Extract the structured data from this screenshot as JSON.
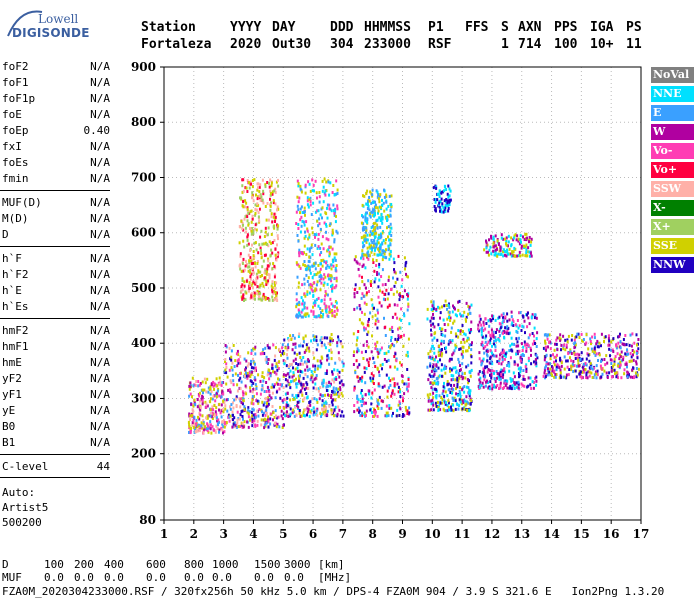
{
  "logo": {
    "line1": "Lowell",
    "line2": "DIGISONDE"
  },
  "header": {
    "row1": [
      "Station",
      "YYYY",
      "DAY",
      "DDD",
      "HHMMSS",
      "P1",
      "FFS",
      "S",
      "AXN",
      "PPS",
      "IGA",
      "PS"
    ],
    "row2": [
      "Fortaleza",
      "2020",
      "Out30",
      "304",
      "233000",
      "RSF",
      "",
      "1",
      "714",
      "100",
      "10+",
      "11"
    ]
  },
  "params": [
    {
      "name": "foF2",
      "value": "N/A"
    },
    {
      "name": "foF1",
      "value": "N/A"
    },
    {
      "name": "foF1p",
      "value": "N/A"
    },
    {
      "name": "foE",
      "value": "N/A"
    },
    {
      "name": "foEp",
      "value": "0.40"
    },
    {
      "name": "fxI",
      "value": "N/A"
    },
    {
      "name": "foEs",
      "value": "N/A"
    },
    {
      "name": "fmin",
      "value": "N/A"
    },
    {
      "name": "MUF(D)",
      "value": "N/A"
    },
    {
      "name": "M(D)",
      "value": "N/A"
    },
    {
      "name": "D",
      "value": "N/A"
    },
    {
      "name": "h`F",
      "value": "N/A"
    },
    {
      "name": "h`F2",
      "value": "N/A"
    },
    {
      "name": "h`E",
      "value": "N/A"
    },
    {
      "name": "h`Es",
      "value": "N/A"
    },
    {
      "name": "hmF2",
      "value": "N/A"
    },
    {
      "name": "hmF1",
      "value": "N/A"
    },
    {
      "name": "hmE",
      "value": "N/A"
    },
    {
      "name": "yF2",
      "value": "N/A"
    },
    {
      "name": "yF1",
      "value": "N/A"
    },
    {
      "name": "yE",
      "value": "N/A"
    },
    {
      "name": "B0",
      "value": "N/A"
    },
    {
      "name": "B1",
      "value": "N/A"
    },
    {
      "name": "C-level",
      "value": "44"
    }
  ],
  "auto": {
    "line1": "Auto:",
    "line2": "Artist5",
    "line3": "500200"
  },
  "legend": [
    {
      "label": "NoVal",
      "color": "#808080"
    },
    {
      "label": "NNE",
      "color": "#00e0ff"
    },
    {
      "label": "E",
      "color": "#3aa0ff"
    },
    {
      "label": "W",
      "color": "#b000a0"
    },
    {
      "label": "Vo-",
      "color": "#ff3cb4"
    },
    {
      "label": "Vo+",
      "color": "#ff0040"
    },
    {
      "label": "SSW",
      "color": "#ffb0a8"
    },
    {
      "label": "X-",
      "color": "#008000"
    },
    {
      "label": "X+",
      "color": "#a0d060"
    },
    {
      "label": "SSE",
      "color": "#d0d000"
    },
    {
      "label": "NNW",
      "color": "#2000c0"
    }
  ],
  "chart_data": {
    "type": "scatter",
    "xlim": [
      1,
      17
    ],
    "ylim": [
      80,
      900
    ],
    "xticks": [
      "1",
      "2",
      "3",
      "4",
      "5",
      "6",
      "7",
      "8",
      "9",
      "10",
      "11",
      "12",
      "13",
      "14",
      "15",
      "16",
      "17"
    ],
    "yticks": [
      "80",
      "200",
      "300",
      "400",
      "500",
      "600",
      "700",
      "800",
      "900"
    ],
    "grid": "dotted",
    "legend_position": "right",
    "clusters": [
      {
        "x": [
          1.8,
          3.0
        ],
        "y": [
          240,
          340
        ],
        "colors": [
          "#ffb0a8",
          "#ff3cb4",
          "#3aa0ff",
          "#d0d000",
          "#b000a0"
        ]
      },
      {
        "x": [
          3.0,
          5.0
        ],
        "y": [
          250,
          400
        ],
        "colors": [
          "#ffb0a8",
          "#b000a0",
          "#ff3cb4",
          "#d0d000",
          "#3aa0ff",
          "#2000c0"
        ]
      },
      {
        "x": [
          3.5,
          4.8
        ],
        "y": [
          480,
          700
        ],
        "colors": [
          "#d0d000",
          "#ffb0a8",
          "#ff0040",
          "#a0d060"
        ]
      },
      {
        "x": [
          5.0,
          7.0
        ],
        "y": [
          270,
          420
        ],
        "colors": [
          "#3aa0ff",
          "#00e0ff",
          "#d0d000",
          "#b000a0",
          "#ffb0a8",
          "#2000c0"
        ]
      },
      {
        "x": [
          5.4,
          6.8
        ],
        "y": [
          450,
          700
        ],
        "colors": [
          "#d0d000",
          "#00e0ff",
          "#3aa0ff",
          "#ff3cb4"
        ]
      },
      {
        "x": [
          7.3,
          9.2
        ],
        "y": [
          270,
          560
        ],
        "colors": [
          "#d0d000",
          "#00e0ff",
          "#3aa0ff",
          "#b000a0",
          "#2000c0",
          "#ff3cb4",
          "#ff0040"
        ]
      },
      {
        "x": [
          7.6,
          8.6
        ],
        "y": [
          560,
          680
        ],
        "colors": [
          "#00e0ff",
          "#3aa0ff",
          "#d0d000"
        ]
      },
      {
        "x": [
          9.8,
          11.3
        ],
        "y": [
          280,
          480
        ],
        "colors": [
          "#d0d000",
          "#00e0ff",
          "#3aa0ff",
          "#b000a0",
          "#2000c0"
        ]
      },
      {
        "x": [
          10.0,
          10.6
        ],
        "y": [
          640,
          690
        ],
        "colors": [
          "#2000c0",
          "#00e0ff"
        ]
      },
      {
        "x": [
          11.5,
          13.5
        ],
        "y": [
          320,
          460
        ],
        "colors": [
          "#3aa0ff",
          "#2000c0",
          "#b000a0",
          "#ff3cb4",
          "#00e0ff"
        ]
      },
      {
        "x": [
          11.7,
          13.3
        ],
        "y": [
          560,
          600
        ],
        "colors": [
          "#00e0ff",
          "#d0d000",
          "#b000a0"
        ]
      },
      {
        "x": [
          13.7,
          16.9
        ],
        "y": [
          340,
          420
        ],
        "colors": [
          "#b000a0",
          "#3aa0ff",
          "#2000c0",
          "#ff3cb4",
          "#d0d000"
        ]
      }
    ]
  },
  "footer": {
    "d_label": "D",
    "d_values": [
      "100",
      "200",
      "400",
      "600",
      "800",
      "1000",
      "1500",
      "3000",
      "[km]"
    ],
    "muf_label": "MUF",
    "muf_values": [
      "0.0",
      "0.0",
      "0.0",
      "0.0",
      "0.0",
      "0.0",
      "0.0",
      "0.0",
      "[MHz]"
    ],
    "info": "FZA0M_2020304233000.RSF / 320fx256h 50 kHz 5.0 km / DPS-4 FZA0M 904 / 3.9 S 321.6 E   Ion2Png 1.3.20"
  }
}
